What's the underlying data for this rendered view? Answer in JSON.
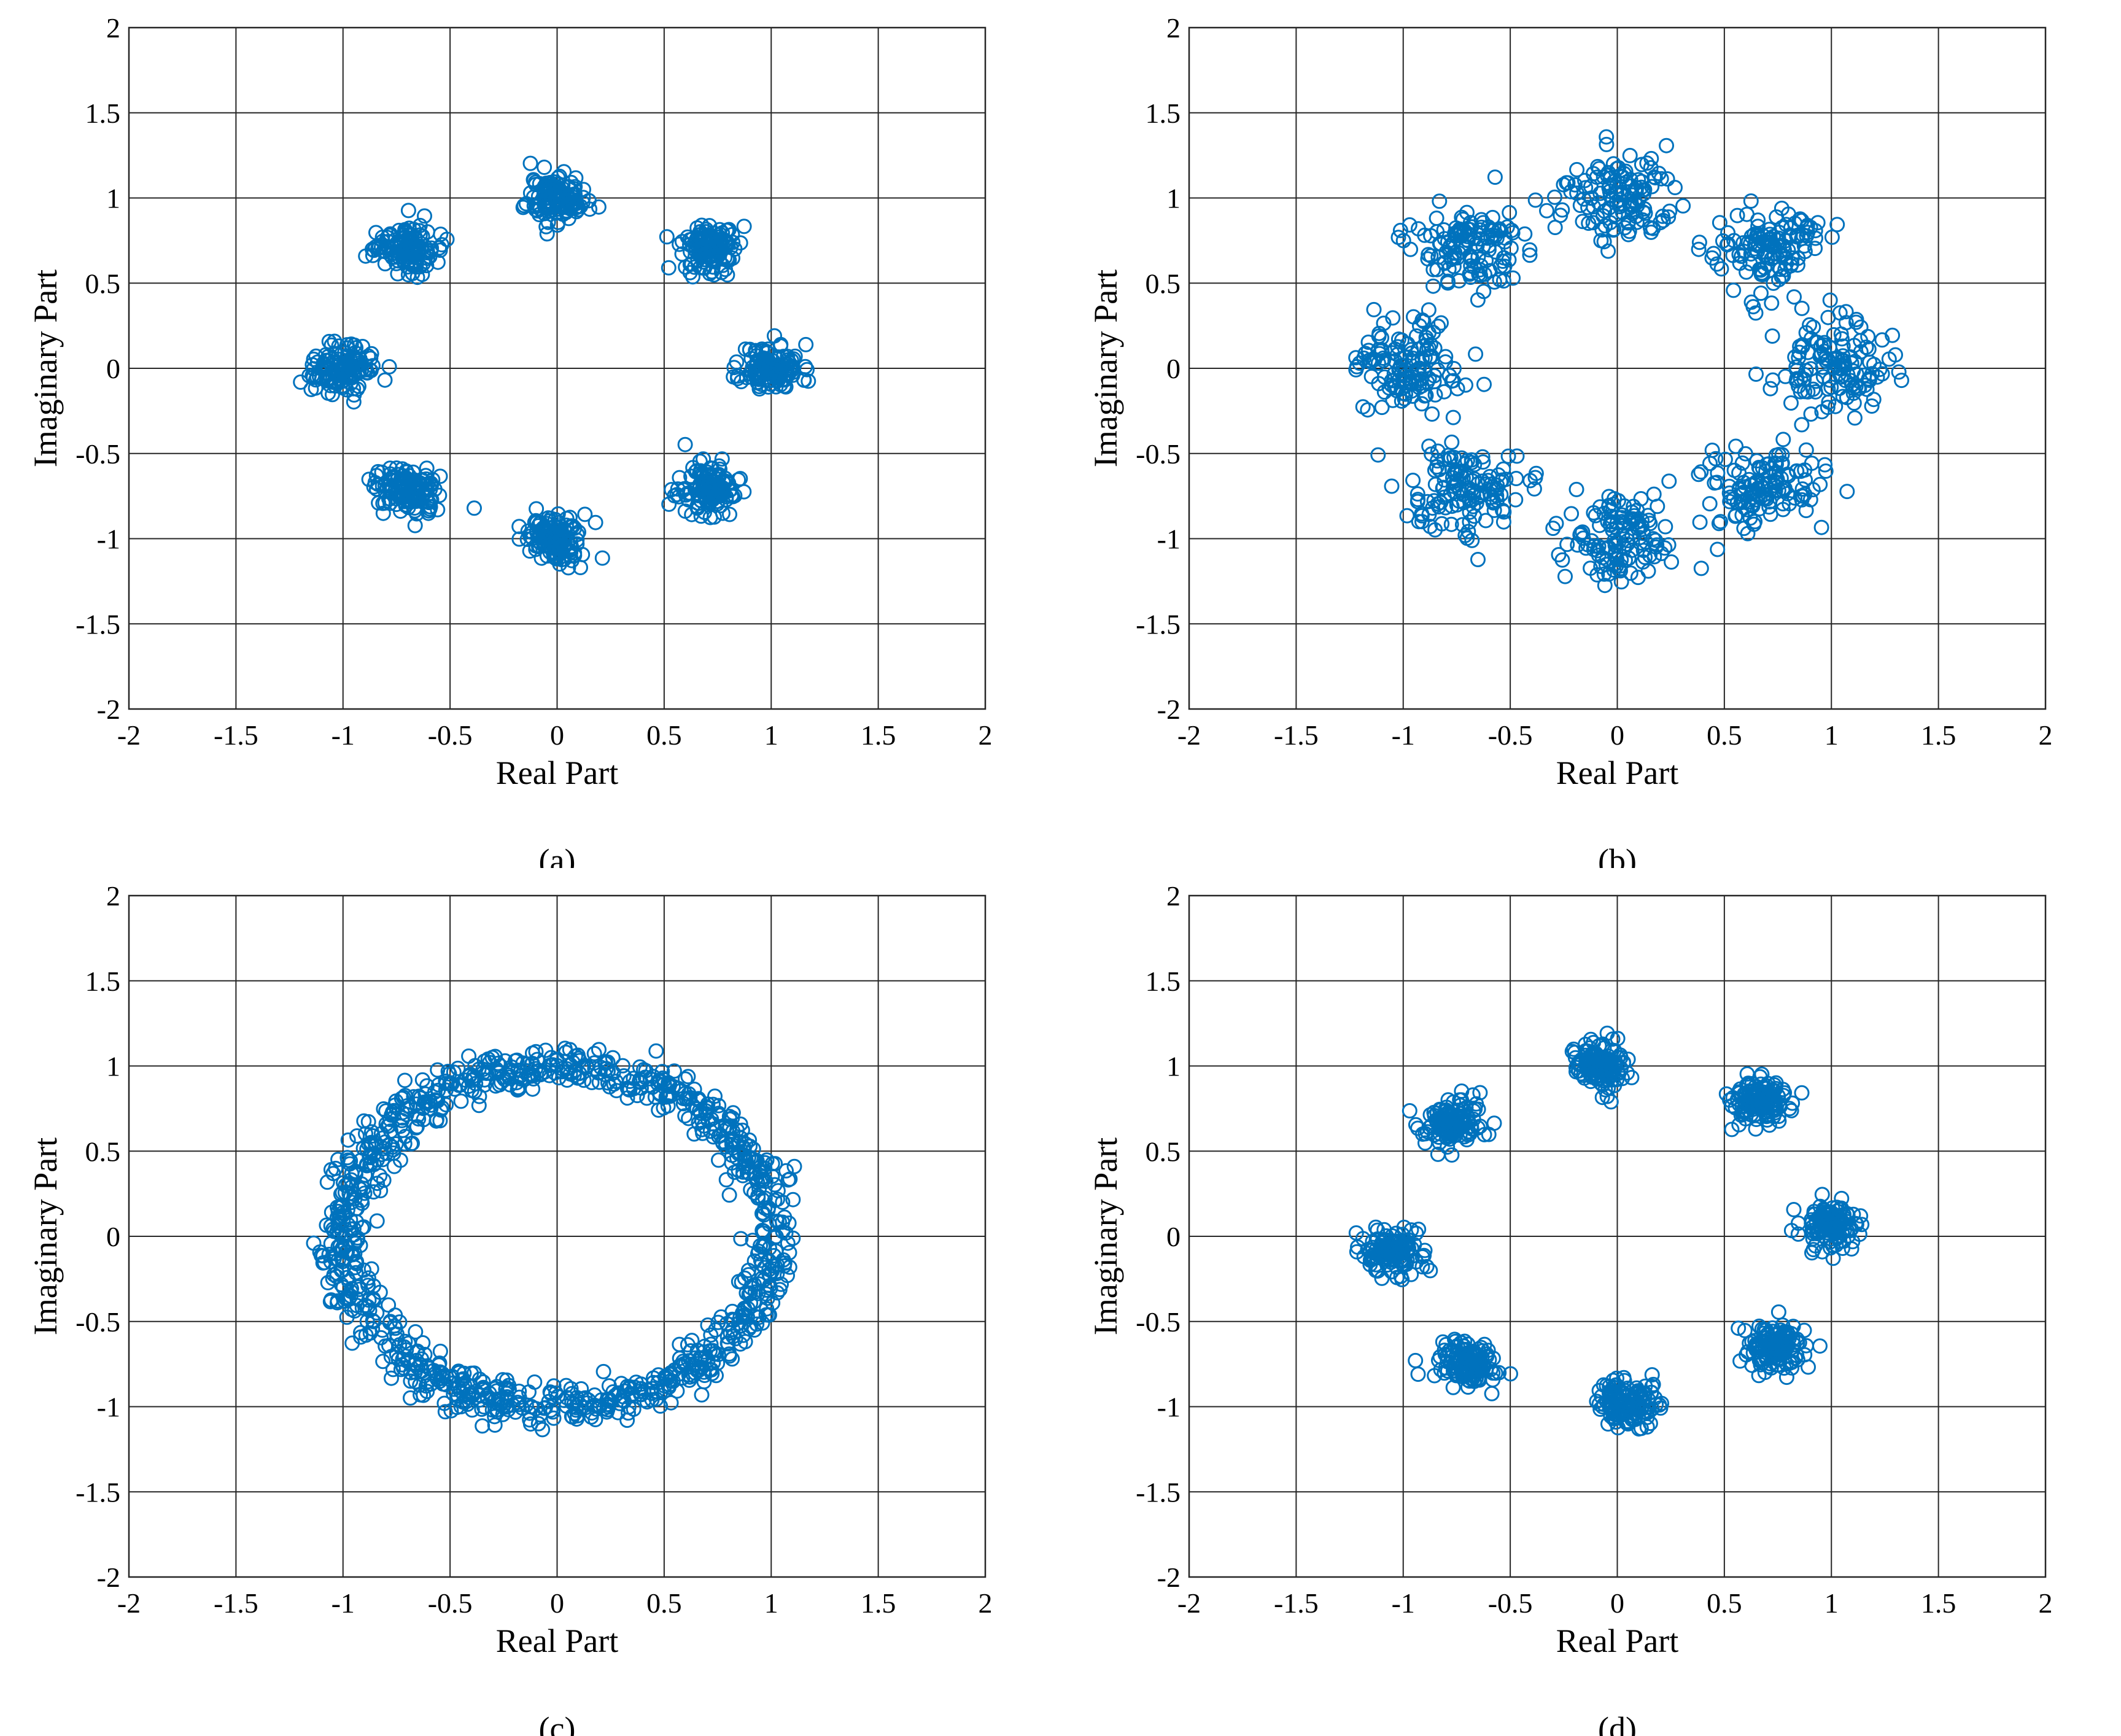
{
  "colors": {
    "marker": "#0072BD",
    "grid": "#262626"
  },
  "chart_data": [
    {
      "type": "scatter",
      "caption": "(a)",
      "xlabel": "Real Part",
      "ylabel": "Imaginary Part",
      "xlim": [
        -2,
        2
      ],
      "ylim": [
        -2,
        2
      ],
      "xticks": [
        "-2",
        "-1.5",
        "-1",
        "-0.5",
        "0",
        "0.5",
        "1",
        "1.5",
        "2"
      ],
      "yticks": [
        "-2",
        "-1.5",
        "-1",
        "-0.5",
        "0",
        "0.5",
        "1",
        "1.5",
        "2"
      ],
      "grid": true,
      "marker": "circle-open",
      "distribution": "8 clusters around unit circle, tight",
      "cluster_centers": [
        [
          1,
          0
        ],
        [
          0.71,
          0.71
        ],
        [
          0,
          1
        ],
        [
          -0.71,
          0.71
        ],
        [
          -1,
          0
        ],
        [
          -0.71,
          -0.71
        ],
        [
          0,
          -1
        ],
        [
          0.71,
          -0.71
        ]
      ],
      "spread": 0.07,
      "points_per_cluster": 130,
      "seed": 11
    },
    {
      "type": "scatter",
      "caption": "(b)",
      "xlabel": "Real Part",
      "ylabel": "Imaginary Part",
      "xlim": [
        -2,
        2
      ],
      "ylim": [
        -2,
        2
      ],
      "xticks": [
        "-2",
        "-1.5",
        "-1",
        "-0.5",
        "0",
        "0.5",
        "1",
        "1.5",
        "2"
      ],
      "yticks": [
        "-2",
        "-1.5",
        "-1",
        "-0.5",
        "0",
        "0.5",
        "1",
        "1.5",
        "2"
      ],
      "grid": true,
      "marker": "circle-open",
      "distribution": "8 clusters around unit circle, wide",
      "cluster_centers": [
        [
          1,
          0
        ],
        [
          0.71,
          0.71
        ],
        [
          0,
          1
        ],
        [
          -0.71,
          0.71
        ],
        [
          -1,
          0
        ],
        [
          -0.71,
          -0.71
        ],
        [
          0,
          -1
        ],
        [
          0.71,
          -0.71
        ]
      ],
      "spread": 0.13,
      "points_per_cluster": 130,
      "seed": 23
    },
    {
      "type": "scatter",
      "caption": "(c)",
      "xlabel": "Real Part",
      "ylabel": "Imaginary Part",
      "xlim": [
        -2,
        2
      ],
      "ylim": [
        -2,
        2
      ],
      "xticks": [
        "-2",
        "-1.5",
        "-1",
        "-0.5",
        "0",
        "0.5",
        "1",
        "1.5",
        "2"
      ],
      "yticks": [
        "-2",
        "-1.5",
        "-1",
        "-0.5",
        "0",
        "0.5",
        "1",
        "1.5",
        "2"
      ],
      "grid": true,
      "marker": "circle-open",
      "distribution": "ring around unit circle",
      "ring_radius": 1.0,
      "ring_spread": 0.06,
      "points": 1040,
      "seed": 37
    },
    {
      "type": "scatter",
      "caption": "(d)",
      "xlabel": "Real Part",
      "ylabel": "Imaginary Part",
      "xlim": [
        -2,
        2
      ],
      "ylim": [
        -2,
        2
      ],
      "xticks": [
        "-2",
        "-1.5",
        "-1",
        "-0.5",
        "0",
        "0.5",
        "1",
        "1.5",
        "2"
      ],
      "yticks": [
        "-2",
        "-1.5",
        "-1",
        "-0.5",
        "0",
        "0.5",
        "1",
        "1.5",
        "2"
      ],
      "grid": true,
      "marker": "circle-open",
      "distribution": "8 clusters around unit circle, slightly rotated",
      "cluster_centers": [
        [
          1.0,
          0.07
        ],
        [
          0.67,
          0.78
        ],
        [
          -0.07,
          1.0
        ],
        [
          -0.77,
          0.66
        ],
        [
          -1.05,
          -0.08
        ],
        [
          -0.7,
          -0.75
        ],
        [
          0.05,
          -0.98
        ],
        [
          0.73,
          -0.65
        ]
      ],
      "spread": 0.07,
      "points_per_cluster": 130,
      "seed": 53
    }
  ]
}
